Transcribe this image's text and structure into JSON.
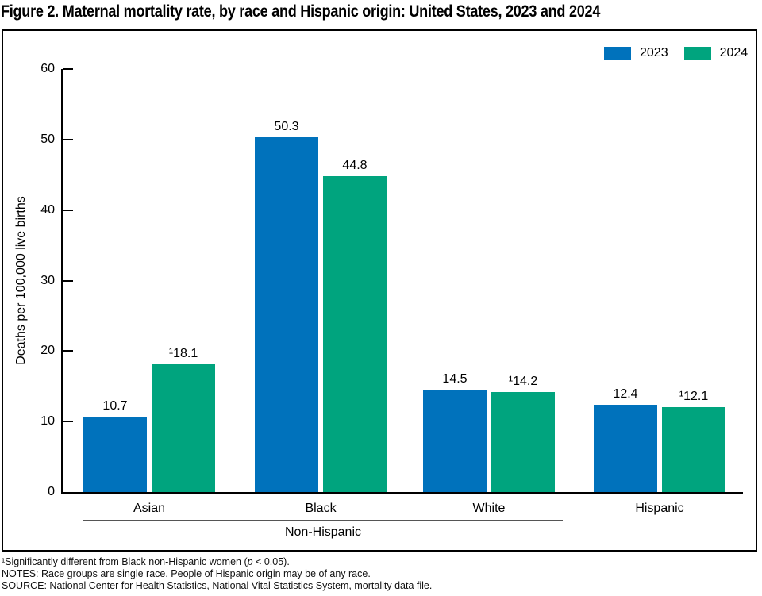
{
  "figure": {
    "title": "Figure 2. Maternal mortality rate, by race and Hispanic origin: United States, 2023 and 2024"
  },
  "legend": {
    "items": [
      {
        "label": "2023",
        "color": "#0072BC"
      },
      {
        "label": "2024",
        "color": "#00A47E"
      }
    ]
  },
  "chart_data": {
    "type": "bar",
    "title": "Figure 2. Maternal mortality rate, by race and Hispanic origin: United States, 2023 and 2024",
    "categories": [
      "Asian",
      "Black",
      "White",
      "Hispanic"
    ],
    "series": [
      {
        "name": "2023",
        "color": "#0072BC",
        "values": [
          10.7,
          50.3,
          14.5,
          12.4
        ],
        "labels": [
          "10.7",
          "50.3",
          "14.5",
          "12.4"
        ]
      },
      {
        "name": "2024",
        "color": "#00A47E",
        "values": [
          18.1,
          44.8,
          14.2,
          12.1
        ],
        "labels": [
          "¹18.1",
          "44.8",
          "¹14.2",
          "¹12.1"
        ]
      }
    ],
    "ylabel": "Deaths per 100,000 live births",
    "ylim": [
      0,
      60
    ],
    "yticks": [
      0,
      10,
      20,
      30,
      40,
      50,
      60
    ],
    "grid": false,
    "legend_position": "top-right",
    "group_label": {
      "text": "Non-Hispanic",
      "applies_to": [
        "Asian",
        "Black",
        "White"
      ]
    }
  },
  "footnotes": {
    "sig_pre": "¹Significantly different from Black non-Hispanic women (",
    "sig_p": "p",
    "sig_post": " < 0.05).",
    "notes": "NOTES: Race groups are single race. People of Hispanic origin may be of any race.",
    "source": "SOURCE: National Center for Health Statistics, National Vital Statistics System, mortality data file."
  }
}
